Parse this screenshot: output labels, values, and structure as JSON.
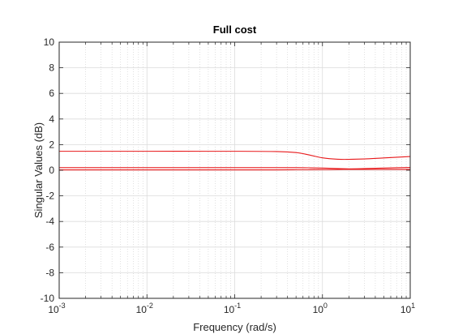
{
  "chart_data": {
    "type": "line",
    "title": "Full cost",
    "xlabel": "Frequency (rad/s)",
    "ylabel": "Singular Values (dB)",
    "x_scale": "log",
    "xlim": [
      0.001,
      10
    ],
    "ylim": [
      -10,
      10
    ],
    "x_ticks": [
      {
        "value": 0.001,
        "base": "10",
        "exp": "-3"
      },
      {
        "value": 0.01,
        "base": "10",
        "exp": "-2"
      },
      {
        "value": 0.1,
        "base": "10",
        "exp": "-1"
      },
      {
        "value": 1,
        "base": "10",
        "exp": "0"
      },
      {
        "value": 10,
        "base": "10",
        "exp": "1"
      }
    ],
    "y_ticks": [
      -10,
      -8,
      -6,
      -4,
      -2,
      0,
      2,
      4,
      6,
      8,
      10
    ],
    "grid": true,
    "minor_grid": true,
    "line_color": "#e8191b",
    "series": [
      {
        "x": [
          0.001,
          0.01,
          0.1,
          0.3,
          0.5,
          0.7,
          1.0,
          1.5,
          2.0,
          3.0,
          5.0,
          10.0
        ],
        "y": [
          1.48,
          1.48,
          1.48,
          1.46,
          1.38,
          1.2,
          0.97,
          0.86,
          0.85,
          0.88,
          0.96,
          1.07
        ]
      },
      {
        "x": [
          0.001,
          0.01,
          0.1,
          0.3,
          0.5,
          0.7,
          1.0,
          1.5,
          2.0,
          3.0,
          5.0,
          10.0
        ],
        "y": [
          0.2,
          0.2,
          0.2,
          0.2,
          0.2,
          0.19,
          0.17,
          0.13,
          0.11,
          0.13,
          0.17,
          0.22
        ]
      },
      {
        "x": [
          0.001,
          0.01,
          0.1,
          0.3,
          0.5,
          0.7,
          1.0,
          1.5,
          2.0,
          3.0,
          5.0,
          10.0
        ],
        "y": [
          0.03,
          0.03,
          0.03,
          0.03,
          0.04,
          0.04,
          0.05,
          0.06,
          0.07,
          0.07,
          0.07,
          0.07
        ]
      }
    ]
  }
}
